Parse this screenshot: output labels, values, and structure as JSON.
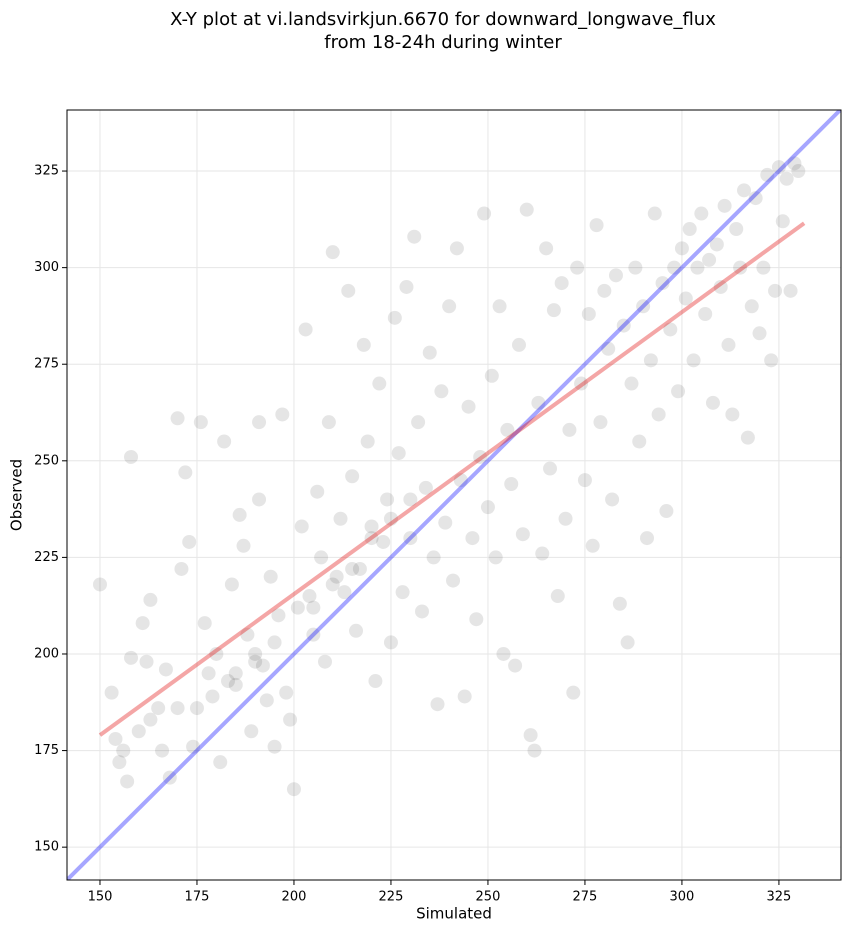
{
  "chart_data": {
    "type": "scatter",
    "title": [
      "X-Y plot at vi.landsvirkjun.6670 for downward_longwave_flux",
      "from 18-24h during winter"
    ],
    "xlabel": "Simulated",
    "ylabel": "Observed",
    "xlim": [
      141.5,
      341
    ],
    "ylim": [
      141.5,
      340.8
    ],
    "xticks": [
      150,
      175,
      200,
      225,
      250,
      275,
      300,
      325
    ],
    "yticks": [
      150,
      175,
      200,
      225,
      250,
      275,
      300,
      325
    ],
    "grid": true,
    "points": {
      "color": "#000000",
      "alpha": 0.1,
      "x": [
        150,
        153,
        154,
        155,
        156,
        157,
        158,
        158,
        160,
        161,
        162,
        163,
        163,
        165,
        166,
        167,
        168,
        170,
        170,
        171,
        172,
        173,
        174,
        175,
        176,
        177,
        178,
        179,
        180,
        181,
        182,
        183,
        184,
        185,
        186,
        187,
        188,
        189,
        190,
        191,
        191,
        192,
        193,
        194,
        195,
        196,
        197,
        198,
        199,
        200,
        201,
        202,
        203,
        204,
        205,
        206,
        207,
        208,
        209,
        210,
        211,
        212,
        213,
        214,
        215,
        216,
        217,
        218,
        219,
        220,
        221,
        222,
        223,
        224,
        225,
        226,
        227,
        228,
        229,
        230,
        231,
        232,
        233,
        234,
        235,
        236,
        237,
        238,
        239,
        240,
        241,
        242,
        243,
        244,
        245,
        246,
        247,
        248,
        249,
        250,
        251,
        252,
        253,
        254,
        255,
        256,
        257,
        258,
        259,
        260,
        261,
        262,
        263,
        264,
        265,
        266,
        267,
        268,
        269,
        270,
        271,
        272,
        273,
        274,
        275,
        276,
        277,
        278,
        279,
        280,
        281,
        282,
        283,
        284,
        285,
        286,
        287,
        288,
        289,
        290,
        291,
        292,
        293,
        294,
        295,
        296,
        297,
        298,
        299,
        300,
        301,
        302,
        303,
        304,
        305,
        306,
        307,
        308,
        309,
        310,
        311,
        312,
        313,
        314,
        315,
        316,
        317,
        318,
        319,
        320,
        321,
        322,
        323,
        324,
        325,
        326,
        327,
        328,
        329,
        330,
        185,
        190,
        195,
        205,
        210,
        215,
        220,
        225,
        230
      ],
      "y": [
        218,
        190,
        178,
        172,
        175,
        167,
        199,
        251,
        180,
        208,
        198,
        214,
        183,
        186,
        175,
        196,
        168,
        186,
        261,
        222,
        247,
        229,
        176,
        186,
        260,
        208,
        195,
        189,
        200,
        172,
        255,
        193,
        218,
        192,
        236,
        228,
        205,
        180,
        200,
        260,
        240,
        197,
        188,
        220,
        176,
        210,
        262,
        190,
        183,
        165,
        212,
        233,
        284,
        215,
        205,
        242,
        225,
        198,
        260,
        304,
        220,
        235,
        216,
        294,
        246,
        206,
        222,
        280,
        255,
        233,
        193,
        270,
        229,
        240,
        203,
        287,
        252,
        216,
        295,
        230,
        308,
        260,
        211,
        243,
        278,
        225,
        187,
        268,
        234,
        290,
        219,
        305,
        245,
        189,
        264,
        230,
        209,
        251,
        314,
        238,
        272,
        225,
        290,
        200,
        258,
        244,
        197,
        280,
        231,
        315,
        179,
        175,
        265,
        226,
        305,
        248,
        289,
        215,
        296,
        235,
        258,
        190,
        300,
        270,
        245,
        288,
        228,
        311,
        260,
        294,
        279,
        240,
        298,
        213,
        285,
        203,
        270,
        300,
        255,
        290,
        230,
        276,
        314,
        262,
        296,
        237,
        284,
        300,
        268,
        305,
        292,
        310,
        276,
        300,
        314,
        288,
        302,
        265,
        306,
        295,
        316,
        280,
        262,
        310,
        300,
        320,
        256,
        290,
        318,
        283,
        300,
        324,
        276,
        294,
        326,
        312,
        323,
        294,
        327,
        325,
        195,
        198,
        203,
        212,
        218,
        222,
        230,
        235,
        240
      ]
    },
    "lines": [
      {
        "color": "#0000ff",
        "x": [
          141.5,
          341
        ],
        "y": [
          141.5,
          341
        ]
      },
      {
        "color": "#e00000",
        "x": [
          150,
          331.5
        ],
        "y": [
          179,
          311.5
        ]
      }
    ]
  }
}
